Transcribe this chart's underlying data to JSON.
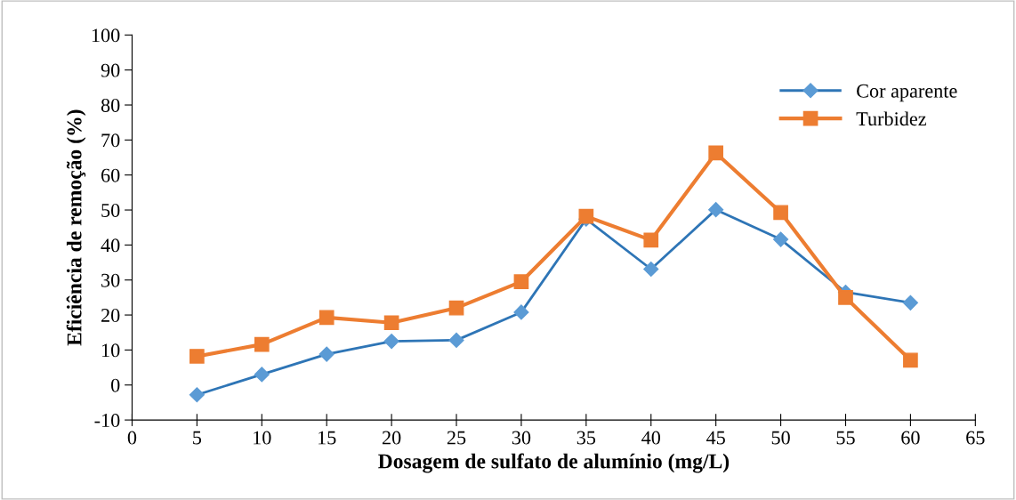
{
  "chart_data": {
    "type": "line",
    "xlabel": "Dosagem de sulfato de alumínio (mg/L)",
    "ylabel": "Eficiência de remoção (%)",
    "x": [
      5,
      10,
      15,
      20,
      25,
      30,
      35,
      40,
      45,
      50,
      55,
      60
    ],
    "series": [
      {
        "name": "Cor aparente",
        "color": "#2e75b6",
        "marker": "diamond",
        "values": [
          -2.8,
          3.0,
          8.8,
          12.5,
          12.8,
          20.8,
          47.4,
          33.1,
          50.1,
          41.6,
          26.5,
          23.5
        ]
      },
      {
        "name": "Turbidez",
        "color": "#ed7d31",
        "marker": "square",
        "values": [
          8.2,
          11.6,
          19.3,
          17.8,
          22.0,
          29.5,
          48.2,
          41.4,
          66.3,
          49.3,
          25.0,
          7.1
        ]
      }
    ],
    "xlim": [
      0,
      65
    ],
    "xticks": [
      0,
      5,
      10,
      15,
      20,
      25,
      30,
      35,
      40,
      45,
      50,
      55,
      60,
      65
    ],
    "ylim": [
      -10,
      100
    ],
    "yticks": [
      -10,
      0,
      10,
      20,
      30,
      40,
      50,
      60,
      70,
      80,
      90,
      100
    ],
    "grid": false,
    "legend": "top right",
    "line_style": "solid"
  }
}
